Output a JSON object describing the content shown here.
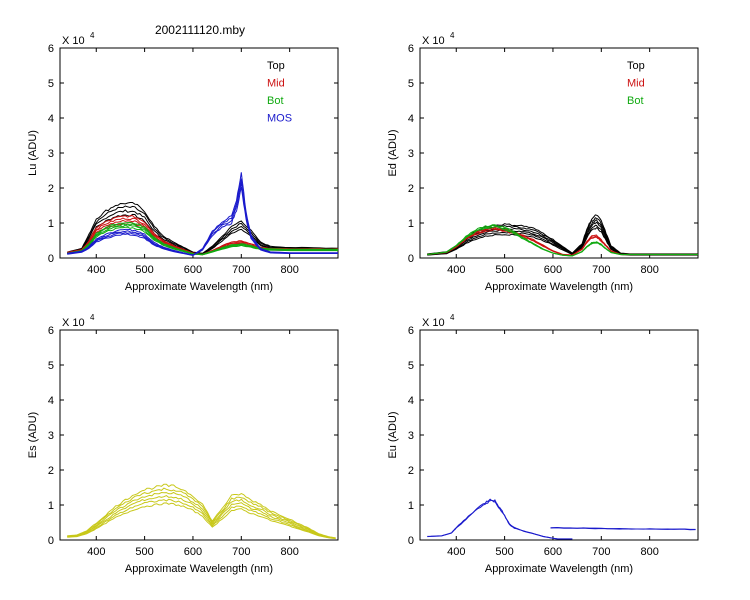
{
  "figure_title": "2002111120.mby",
  "chart_data": [
    {
      "type": "line",
      "id": "lu",
      "ylabel": "Lu (ADU)",
      "xlabel": "Approximate Wavelength (nm)",
      "xlim": [
        325,
        900
      ],
      "ylim": [
        0,
        6
      ],
      "xticks": [
        400,
        500,
        600,
        700,
        800
      ],
      "yticks": [
        0,
        1,
        2,
        3,
        4,
        5,
        6
      ],
      "exponent_label": "X 10",
      "exponent_power": "4",
      "legend": [
        {
          "name": "Top",
          "color": "#000000"
        },
        {
          "name": "Mid",
          "color": "#cc1111"
        },
        {
          "name": "Bot",
          "color": "#11aa11"
        },
        {
          "name": "MOS",
          "color": "#1a1acc"
        }
      ],
      "series": [
        {
          "name": "Top",
          "color": "#000000",
          "x": [
            340,
            370,
            385,
            400,
            420,
            440,
            460,
            480,
            500,
            520,
            540,
            560,
            580,
            600,
            620,
            640,
            660,
            680,
            700,
            720,
            740,
            760,
            800,
            850,
            900
          ],
          "values": [
            0.15,
            0.25,
            0.6,
            1.0,
            1.2,
            1.35,
            1.4,
            1.38,
            1.2,
            0.8,
            0.55,
            0.4,
            0.28,
            0.15,
            0.12,
            0.3,
            0.55,
            0.8,
            0.95,
            0.7,
            0.4,
            0.3,
            0.27,
            0.26,
            0.25
          ],
          "copies": 4,
          "spread": 0.08
        },
        {
          "name": "Mid",
          "color": "#cc1111",
          "x": [
            340,
            370,
            385,
            400,
            420,
            440,
            460,
            480,
            500,
            520,
            540,
            560,
            580,
            600,
            620,
            640,
            660,
            680,
            700,
            720,
            740,
            760,
            800,
            850,
            900
          ],
          "values": [
            0.15,
            0.22,
            0.45,
            0.8,
            0.95,
            1.05,
            1.1,
            1.08,
            0.95,
            0.65,
            0.45,
            0.33,
            0.23,
            0.13,
            0.1,
            0.2,
            0.32,
            0.42,
            0.45,
            0.38,
            0.28,
            0.25,
            0.24,
            0.24,
            0.24
          ],
          "copies": 4,
          "spread": 0.06
        },
        {
          "name": "Bot",
          "color": "#11aa11",
          "x": [
            340,
            370,
            385,
            400,
            420,
            440,
            460,
            480,
            500,
            520,
            540,
            560,
            580,
            600,
            620,
            640,
            660,
            680,
            700,
            720,
            740,
            760,
            800,
            850,
            900
          ],
          "values": [
            0.13,
            0.2,
            0.38,
            0.65,
            0.82,
            0.9,
            0.95,
            0.92,
            0.82,
            0.55,
            0.38,
            0.28,
            0.2,
            0.12,
            0.1,
            0.18,
            0.27,
            0.35,
            0.38,
            0.33,
            0.26,
            0.24,
            0.23,
            0.23,
            0.23
          ],
          "copies": 4,
          "spread": 0.05
        },
        {
          "name": "MOS",
          "color": "#1a1acc",
          "x": [
            340,
            370,
            385,
            400,
            420,
            440,
            460,
            480,
            500,
            520,
            540,
            560,
            580,
            600,
            620,
            640,
            660,
            680,
            690,
            700,
            710,
            720,
            740,
            760,
            800,
            850,
            900
          ],
          "values": [
            0.12,
            0.18,
            0.3,
            0.5,
            0.62,
            0.7,
            0.75,
            0.72,
            0.62,
            0.4,
            0.28,
            0.2,
            0.14,
            0.08,
            0.25,
            0.7,
            0.95,
            1.1,
            1.5,
            2.2,
            1.2,
            0.6,
            0.25,
            0.16,
            0.14,
            0.14,
            0.14
          ],
          "copies": 4,
          "spread": 0.06
        }
      ]
    },
    {
      "type": "line",
      "id": "ed",
      "ylabel": "Ed (ADU)",
      "xlabel": "Approximate Wavelength (nm)",
      "xlim": [
        325,
        900
      ],
      "ylim": [
        0,
        6
      ],
      "xticks": [
        400,
        500,
        600,
        700,
        800
      ],
      "yticks": [
        0,
        1,
        2,
        3,
        4,
        5,
        6
      ],
      "exponent_label": "X 10",
      "exponent_power": "4",
      "legend": [
        {
          "name": "Top",
          "color": "#000000"
        },
        {
          "name": "Mid",
          "color": "#cc1111"
        },
        {
          "name": "Bot",
          "color": "#11aa11"
        }
      ],
      "series": [
        {
          "name": "Top",
          "color": "#000000",
          "x": [
            340,
            380,
            400,
            420,
            440,
            460,
            480,
            500,
            520,
            540,
            560,
            580,
            600,
            620,
            640,
            660,
            670,
            680,
            690,
            700,
            710,
            720,
            740,
            760,
            800,
            850,
            900
          ],
          "values": [
            0.1,
            0.15,
            0.3,
            0.5,
            0.65,
            0.75,
            0.8,
            0.82,
            0.8,
            0.78,
            0.72,
            0.6,
            0.45,
            0.28,
            0.12,
            0.35,
            0.7,
            0.95,
            1.05,
            0.9,
            0.6,
            0.3,
            0.12,
            0.1,
            0.1,
            0.1,
            0.1
          ],
          "copies": 6,
          "spread": 0.07
        },
        {
          "name": "Mid",
          "color": "#cc1111",
          "x": [
            340,
            380,
            400,
            420,
            440,
            460,
            480,
            500,
            520,
            540,
            560,
            580,
            600,
            620,
            640,
            660,
            670,
            680,
            690,
            700,
            710,
            720,
            740,
            760,
            800,
            850,
            900
          ],
          "values": [
            0.1,
            0.16,
            0.32,
            0.55,
            0.7,
            0.8,
            0.85,
            0.8,
            0.72,
            0.62,
            0.5,
            0.35,
            0.2,
            0.1,
            0.08,
            0.25,
            0.45,
            0.6,
            0.62,
            0.5,
            0.35,
            0.2,
            0.1,
            0.1,
            0.1,
            0.1,
            0.1
          ],
          "copies": 3,
          "spread": 0.04
        },
        {
          "name": "Bot",
          "color": "#11aa11",
          "x": [
            340,
            380,
            400,
            420,
            440,
            460,
            480,
            500,
            520,
            540,
            560,
            580,
            600,
            620,
            640,
            660,
            670,
            680,
            690,
            700,
            710,
            720,
            740,
            760,
            800,
            850,
            900
          ],
          "values": [
            0.1,
            0.17,
            0.35,
            0.6,
            0.78,
            0.88,
            0.92,
            0.85,
            0.72,
            0.55,
            0.4,
            0.25,
            0.14,
            0.08,
            0.06,
            0.18,
            0.32,
            0.42,
            0.45,
            0.38,
            0.26,
            0.16,
            0.1,
            0.1,
            0.1,
            0.1,
            0.1
          ],
          "copies": 3,
          "spread": 0.03
        }
      ]
    },
    {
      "type": "line",
      "id": "es",
      "ylabel": "Es (ADU)",
      "xlabel": "Approximate Wavelength (nm)",
      "xlim": [
        325,
        900
      ],
      "ylim": [
        0,
        6
      ],
      "xticks": [
        400,
        500,
        600,
        700,
        800
      ],
      "yticks": [
        0,
        1,
        2,
        3,
        4,
        5,
        6
      ],
      "exponent_label": "X 10",
      "exponent_power": "4",
      "legend": [],
      "series": [
        {
          "name": "Es",
          "color": "#c8c81a",
          "x": [
            340,
            360,
            380,
            400,
            420,
            440,
            460,
            480,
            500,
            520,
            540,
            560,
            580,
            600,
            620,
            640,
            660,
            680,
            700,
            720,
            740,
            760,
            780,
            800,
            820,
            840,
            860,
            880,
            895
          ],
          "values": [
            0.1,
            0.12,
            0.22,
            0.4,
            0.6,
            0.8,
            0.95,
            1.1,
            1.2,
            1.25,
            1.3,
            1.28,
            1.2,
            1.05,
            0.85,
            0.45,
            0.75,
            1.05,
            1.1,
            0.95,
            0.85,
            0.7,
            0.6,
            0.5,
            0.38,
            0.28,
            0.15,
            0.08,
            0.05
          ],
          "copies": 6,
          "spread": 0.08
        }
      ]
    },
    {
      "type": "line",
      "id": "eu",
      "ylabel": "Eu (ADU)",
      "xlabel": "Approximate Wavelength (nm)",
      "xlim": [
        325,
        900
      ],
      "ylim": [
        0,
        6
      ],
      "xticks": [
        400,
        500,
        600,
        700,
        800
      ],
      "yticks": [
        0,
        1,
        2,
        3,
        4,
        5,
        6
      ],
      "exponent_label": "X 10",
      "exponent_power": "4",
      "legend": [],
      "series": [
        {
          "name": "Eu",
          "color": "#1a1acc",
          "x": [
            340,
            370,
            390,
            400,
            420,
            440,
            460,
            470,
            480,
            490,
            500,
            510,
            520,
            540,
            560,
            580,
            600,
            610,
            620,
            640
          ],
          "values": [
            0.1,
            0.12,
            0.2,
            0.35,
            0.6,
            0.85,
            1.05,
            1.15,
            1.1,
            0.9,
            0.7,
            0.45,
            0.35,
            0.25,
            0.18,
            0.1,
            0.05,
            0.03,
            0.03,
            0.03
          ],
          "copies": 2,
          "spread": 0.04
        },
        {
          "name": "Eu-red",
          "color": "#1a1acc",
          "x": [
            595,
            650,
            700,
            750,
            800,
            850,
            895
          ],
          "values": [
            0.35,
            0.34,
            0.33,
            0.32,
            0.31,
            0.31,
            0.3
          ],
          "copies": 2,
          "spread": 0.02
        }
      ]
    }
  ]
}
